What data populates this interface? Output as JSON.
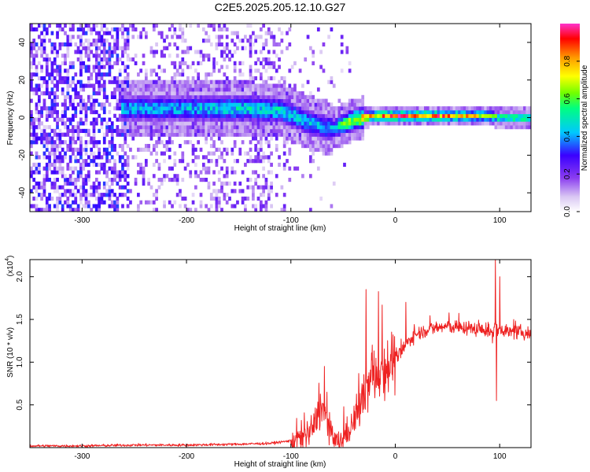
{
  "title": "C2E5.2025.205.12.10.G27",
  "chart_data": [
    {
      "type": "heatmap",
      "xlabel": "Height of straight line (km)",
      "ylabel": "Frequency (Hz)",
      "xlim": [
        -350,
        130
      ],
      "ylim": [
        -50,
        50
      ],
      "xticks": [
        -300,
        -200,
        -100,
        0,
        100
      ],
      "yticks": [
        -40,
        -20,
        0,
        20,
        40
      ],
      "colorbar": {
        "label": "Normalized spectral amplitude",
        "range": [
          0,
          1
        ],
        "ticks": [
          0.0,
          0.2,
          0.4,
          0.6,
          0.8
        ]
      },
      "ridge": {
        "description_points_x_km": [
          -255,
          -200,
          -150,
          -110,
          -80,
          -60,
          -40,
          -20,
          0,
          50,
          90,
          100,
          130
        ],
        "center_hz": [
          5,
          5,
          5,
          4,
          -3,
          -6,
          -1,
          1,
          1,
          1,
          1,
          0,
          0
        ],
        "peak_amplitude": [
          0.45,
          0.45,
          0.5,
          0.5,
          0.45,
          0.45,
          0.75,
          0.85,
          0.95,
          0.9,
          0.7,
          0.6,
          0.6
        ]
      },
      "colormap": [
        "#ffffff",
        "#d9c6f3",
        "#8a3cf0",
        "#3a00ff",
        "#00c8ff",
        "#00ff80",
        "#70ff00",
        "#ffff00",
        "#ff9900",
        "#ff0000",
        "#ff33cc"
      ]
    },
    {
      "type": "line",
      "xlabel": "Height of straight line (km)",
      "ylabel": "SNR (10 * v/v)",
      "yscale_label": "(x10",
      "yscale_exp": "4",
      "xlim": [
        -350,
        130
      ],
      "ylim": [
        0,
        2.2
      ],
      "xticks": [
        -300,
        -200,
        -100,
        0,
        100
      ],
      "yticks": [
        0.5,
        1.0,
        1.5,
        2.0
      ],
      "line_color": "#ee2222",
      "series": [
        {
          "x": [
            -350,
            -300,
            -250,
            -200,
            -150,
            -120,
            -100,
            -90,
            -80,
            -75,
            -70,
            -65,
            -60,
            -55,
            -50,
            -45,
            -40,
            -35,
            -30,
            -25,
            -20,
            -15,
            -10,
            -5,
            0,
            5,
            10,
            15,
            20,
            30,
            40,
            50,
            60,
            70,
            80,
            90,
            94,
            96,
            98,
            100,
            110,
            120,
            130
          ],
          "y": [
            0.02,
            0.02,
            0.03,
            0.03,
            0.04,
            0.05,
            0.08,
            0.12,
            0.2,
            0.35,
            0.5,
            0.3,
            0.1,
            0.05,
            0.1,
            0.2,
            0.3,
            0.45,
            0.6,
            0.75,
            0.85,
            0.9,
            0.95,
            1.0,
            1.05,
            1.1,
            1.2,
            1.28,
            1.33,
            1.38,
            1.4,
            1.42,
            1.4,
            1.4,
            1.38,
            1.37,
            1.3,
            1.5,
            1.35,
            1.4,
            1.35,
            1.35,
            1.33
          ]
        }
      ],
      "spikes": [
        {
          "x": -68,
          "y": 0.95
        },
        {
          "x": -28,
          "y": 1.85
        },
        {
          "x": -22,
          "y": 1.2
        },
        {
          "x": -2,
          "y": 1.32
        },
        {
          "x": 10,
          "y": 1.7
        },
        {
          "x": 96,
          "y": 2.2
        },
        {
          "x": 97,
          "y": 0.55
        },
        {
          "x": 100,
          "y": 2.0
        }
      ]
    }
  ]
}
